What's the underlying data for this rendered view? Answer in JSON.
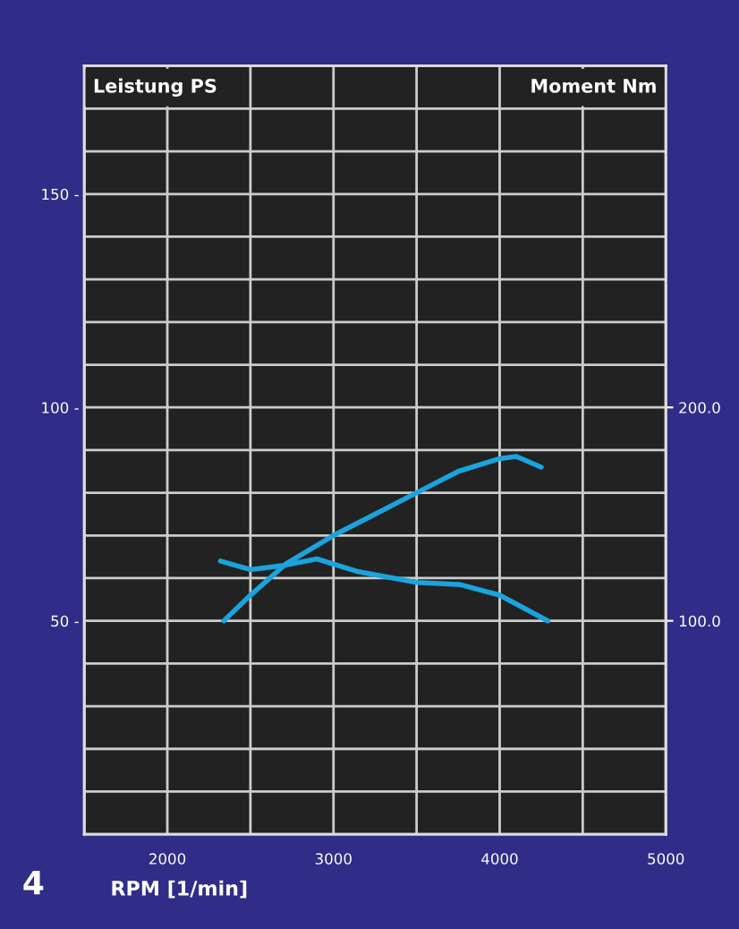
{
  "chart_data": {
    "type": "line",
    "xlabel": "RPM [1/min]",
    "ylabel": "Leistung PS",
    "y2label": "Moment Nm",
    "annotations": [
      "4"
    ],
    "xlim": [
      1500,
      5000
    ],
    "xticks": [
      {
        "value": 1500,
        "label": null
      },
      2000,
      {
        "value": 2500,
        "label": null
      },
      3000,
      {
        "value": 3500,
        "label": null
      },
      4000,
      {
        "value": 4500,
        "label": null
      },
      5000
    ],
    "ylim": [
      0,
      180
    ],
    "yticks": [
      {
        "value": 10,
        "label": null
      },
      {
        "value": 20,
        "label": null
      },
      {
        "value": 30,
        "label": null
      },
      {
        "value": 40,
        "label": null
      },
      {
        "value": 50,
        "label": "50 -"
      },
      {
        "value": 60,
        "label": null
      },
      {
        "value": 70,
        "label": null
      },
      {
        "value": 80,
        "label": null
      },
      {
        "value": 90,
        "label": null
      },
      {
        "value": 100,
        "label": "100 -"
      },
      {
        "value": 110,
        "label": null
      },
      {
        "value": 120,
        "label": null
      },
      {
        "value": 130,
        "label": null
      },
      {
        "value": 140,
        "label": null
      },
      {
        "value": 150,
        "label": "150 -"
      },
      {
        "value": 160,
        "label": null
      },
      {
        "value": 170,
        "label": null
      }
    ],
    "y2lim": [
      0,
      360
    ],
    "y2ticks": [
      {
        "value": 100,
        "label": "100.0"
      },
      {
        "value": 200,
        "label": "200.0"
      }
    ],
    "grid": true,
    "line_style": "solid",
    "marker": "none",
    "series": [
      {
        "color": "#1aa3dd",
        "x": [
          2340,
          2500,
          2715,
          3000,
          3250,
          3500,
          3750,
          4000,
          4100,
          4250
        ],
        "values": [
          50,
          56,
          63.4,
          70,
          75,
          80,
          85,
          88,
          88.5,
          86
        ]
      },
      {
        "color": "#1aa3dd",
        "axis": "y2",
        "x": [
          2320,
          2500,
          2700,
          2900,
          3150,
          3500,
          3760,
          4000,
          4290
        ],
        "values": [
          128,
          124,
          126,
          129,
          123,
          118,
          117,
          112,
          100
        ]
      }
    ]
  }
}
